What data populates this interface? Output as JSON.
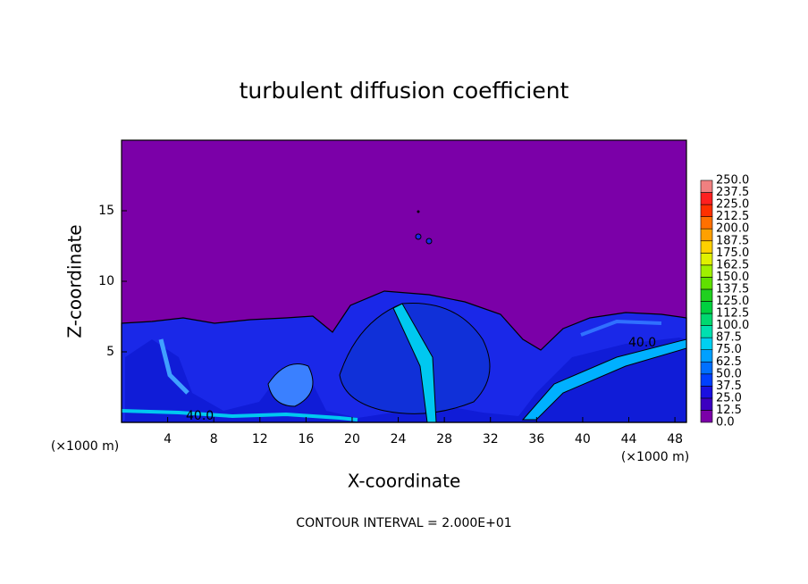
{
  "chart_data": {
    "type": "contour",
    "title": "turbulent diffusion coefficient",
    "x_label": "X-coordinate",
    "y_label": "Z-coordinate",
    "x_unit_label": "(×1000 m)",
    "y_unit_label": "(×1000 m)",
    "xlim": [
      0,
      49
    ],
    "xticks": [
      4,
      8,
      12,
      16,
      20,
      24,
      28,
      32,
      36,
      40,
      44,
      48
    ],
    "ylim": [
      0,
      20
    ],
    "yticks": [
      5,
      10,
      15
    ],
    "contour_labels": [
      "40.0",
      "40.0"
    ],
    "annotation": "CONTOUR INTERVAL = 2.000E+01",
    "colorbar": {
      "levels": [
        {
          "value": 0,
          "label": "0.0"
        },
        {
          "value": 12.5,
          "label": "12.5"
        },
        {
          "value": 25,
          "label": "25.0"
        },
        {
          "value": 37.5,
          "label": "37.5"
        },
        {
          "value": 50,
          "label": "50.0"
        },
        {
          "value": 62.5,
          "label": "62.5"
        },
        {
          "value": 75,
          "label": "75.0"
        },
        {
          "value": 87.5,
          "label": "87.5"
        },
        {
          "value": 100,
          "label": "100.0"
        },
        {
          "value": 112.5,
          "label": "112.5"
        },
        {
          "value": 125,
          "label": "125.0"
        },
        {
          "value": 137.5,
          "label": "137.5"
        },
        {
          "value": 150,
          "label": "150.0"
        },
        {
          "value": 162.5,
          "label": "162.5"
        },
        {
          "value": 175,
          "label": "175.0"
        },
        {
          "value": 187.5,
          "label": "187.5"
        },
        {
          "value": 200,
          "label": "200.0"
        },
        {
          "value": 212.5,
          "label": "212.5"
        },
        {
          "value": 225,
          "label": "225.0"
        },
        {
          "value": 237.5,
          "label": "237.5"
        },
        {
          "value": 250,
          "label": "250.0"
        }
      ],
      "colors": [
        "#7b00a8",
        "#3c00c0",
        "#1a10e0",
        "#0040ff",
        "#0070ff",
        "#00a0ff",
        "#00d0f0",
        "#00e0b0",
        "#00d870",
        "#00d040",
        "#20d020",
        "#60e000",
        "#a0f000",
        "#e0f000",
        "#ffd000",
        "#ffa000",
        "#ff7000",
        "#ff3000",
        "#ff2020",
        "#f08080"
      ]
    }
  }
}
